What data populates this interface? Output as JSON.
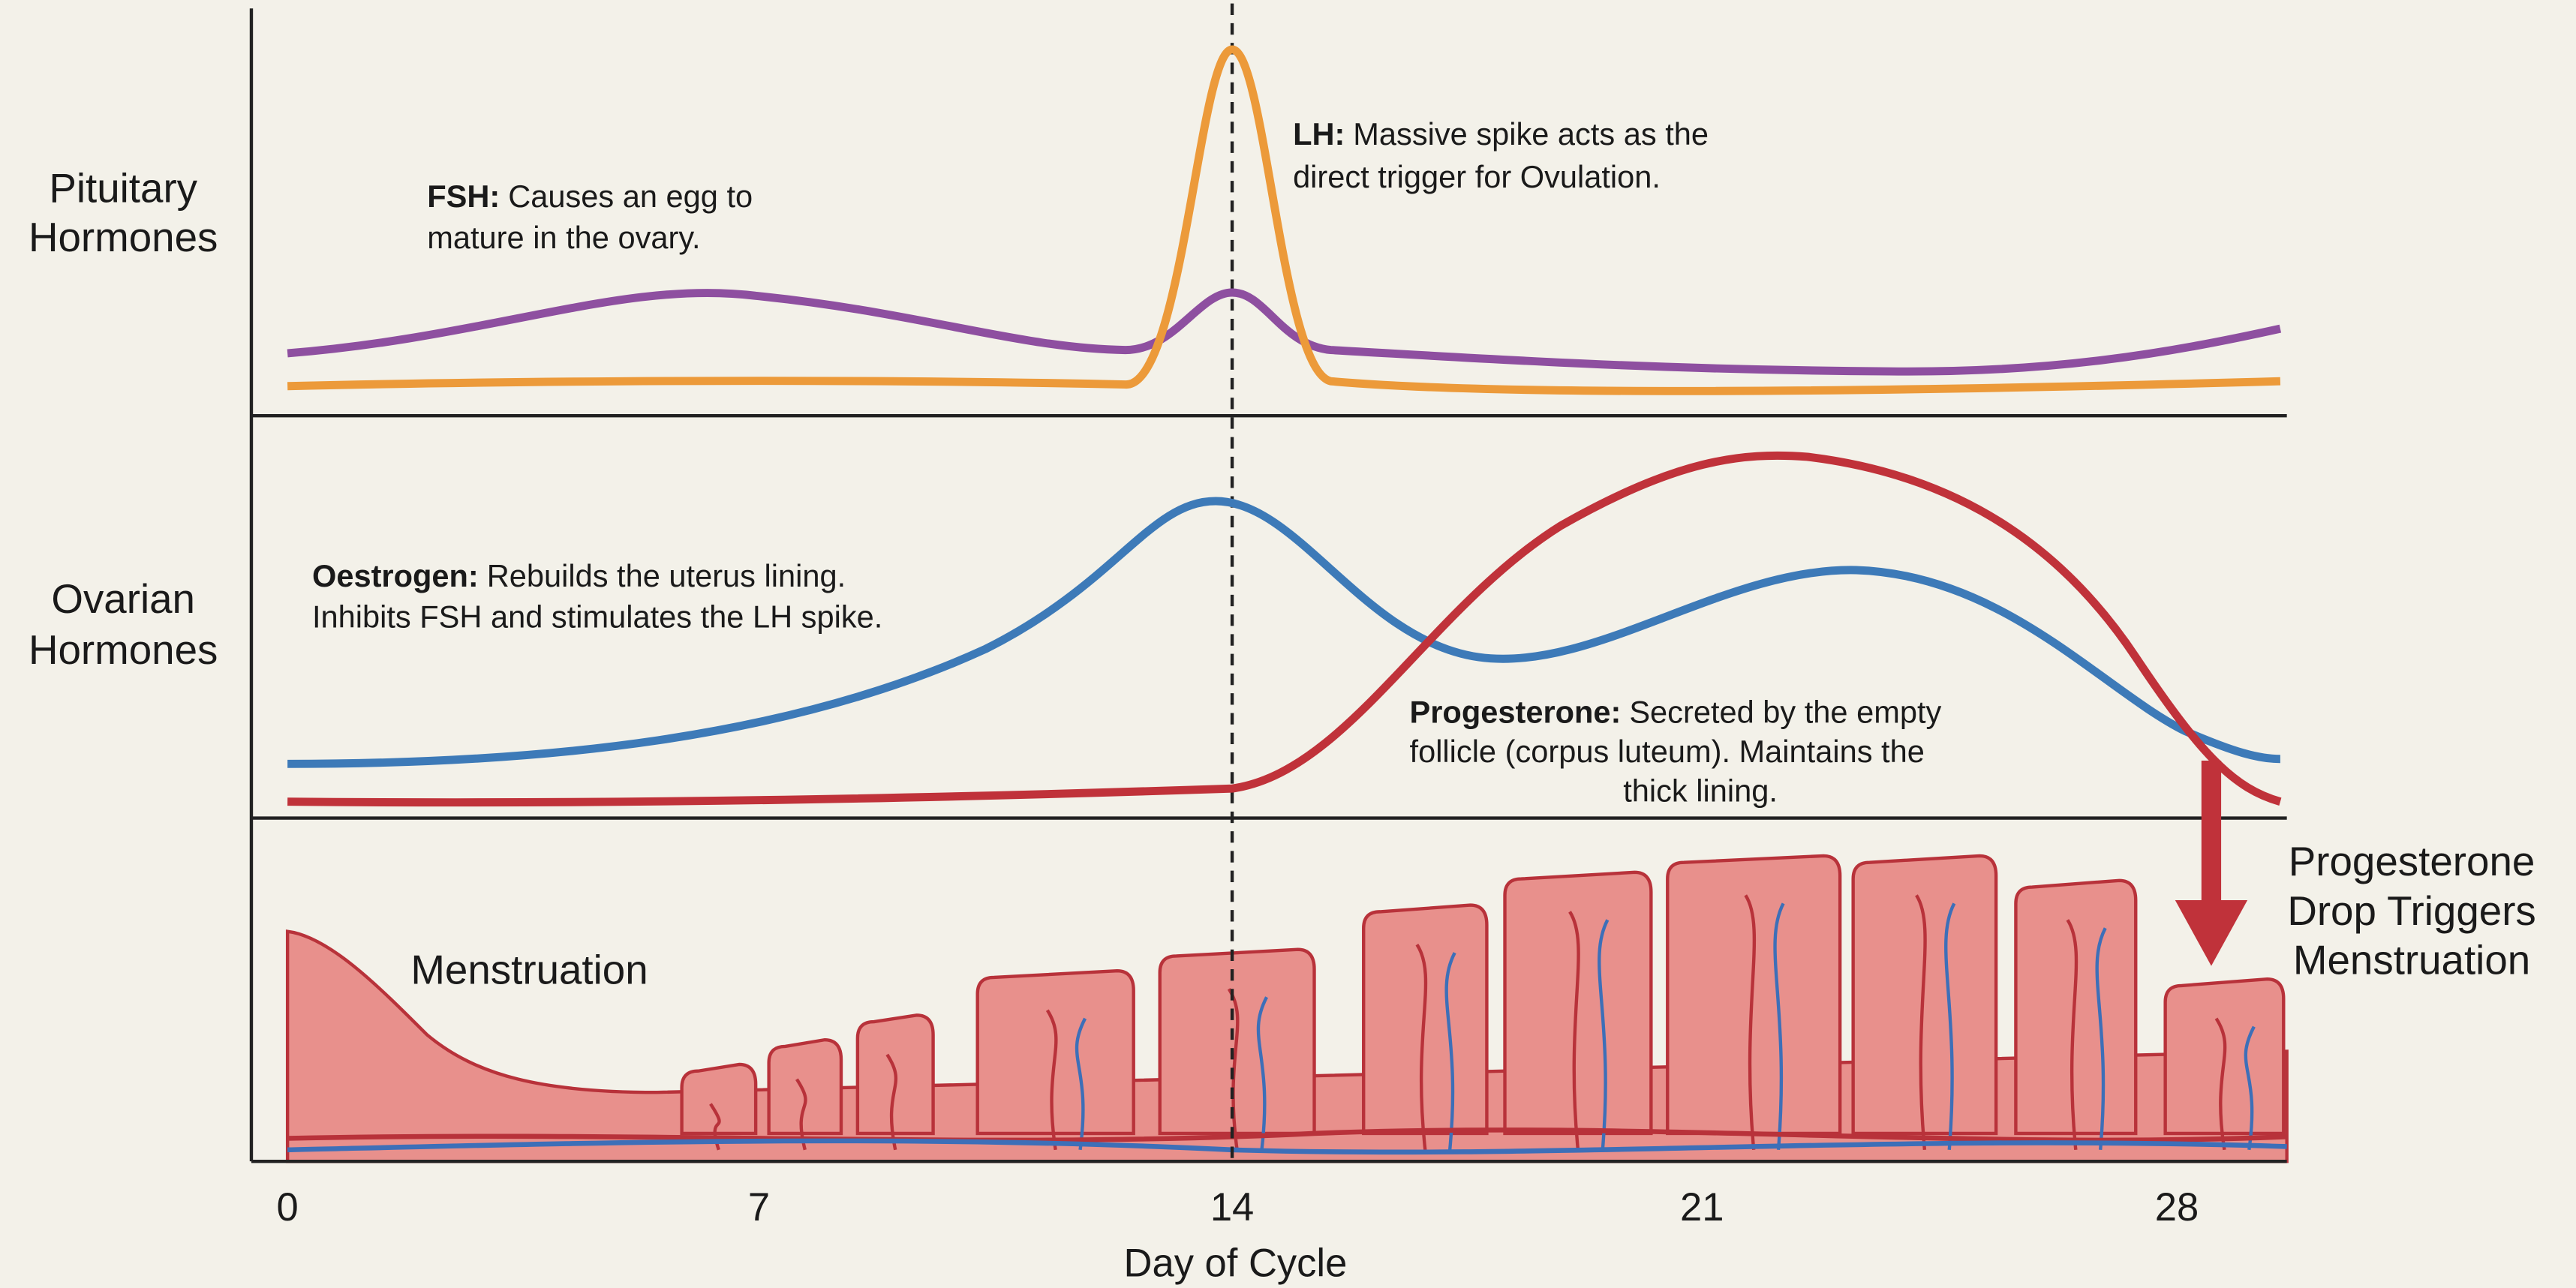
{
  "row_labels": {
    "pituitary": [
      "Pituitary",
      "Hormones"
    ],
    "ovarian": [
      "Ovarian",
      "Hormones"
    ]
  },
  "annotations": {
    "fsh": {
      "label": "FSH:",
      "lines": [
        "Causes an egg to",
        "mature in the ovary."
      ]
    },
    "lh": {
      "label": "LH:",
      "lines": [
        "Massive spike acts as the",
        "direct trigger for Ovulation."
      ]
    },
    "oestrogen": {
      "label": "Oestrogen:",
      "lines": [
        "Rebuilds the uterus lining.",
        "Inhibits FSH and stimulates the LH spike."
      ]
    },
    "progesterone": {
      "label": "Progesterone:",
      "lines": [
        "Secreted by the empty",
        "follicle (corpus luteum). Maintains the",
        "thick lining."
      ]
    }
  },
  "menstruation_label": "Menstruation",
  "drop_label": [
    "Progesterone",
    "Drop Triggers",
    "Menstruation"
  ],
  "x_axis": {
    "ticks": [
      0,
      7,
      14,
      21,
      28
    ],
    "label": "Day of Cycle"
  }
}
